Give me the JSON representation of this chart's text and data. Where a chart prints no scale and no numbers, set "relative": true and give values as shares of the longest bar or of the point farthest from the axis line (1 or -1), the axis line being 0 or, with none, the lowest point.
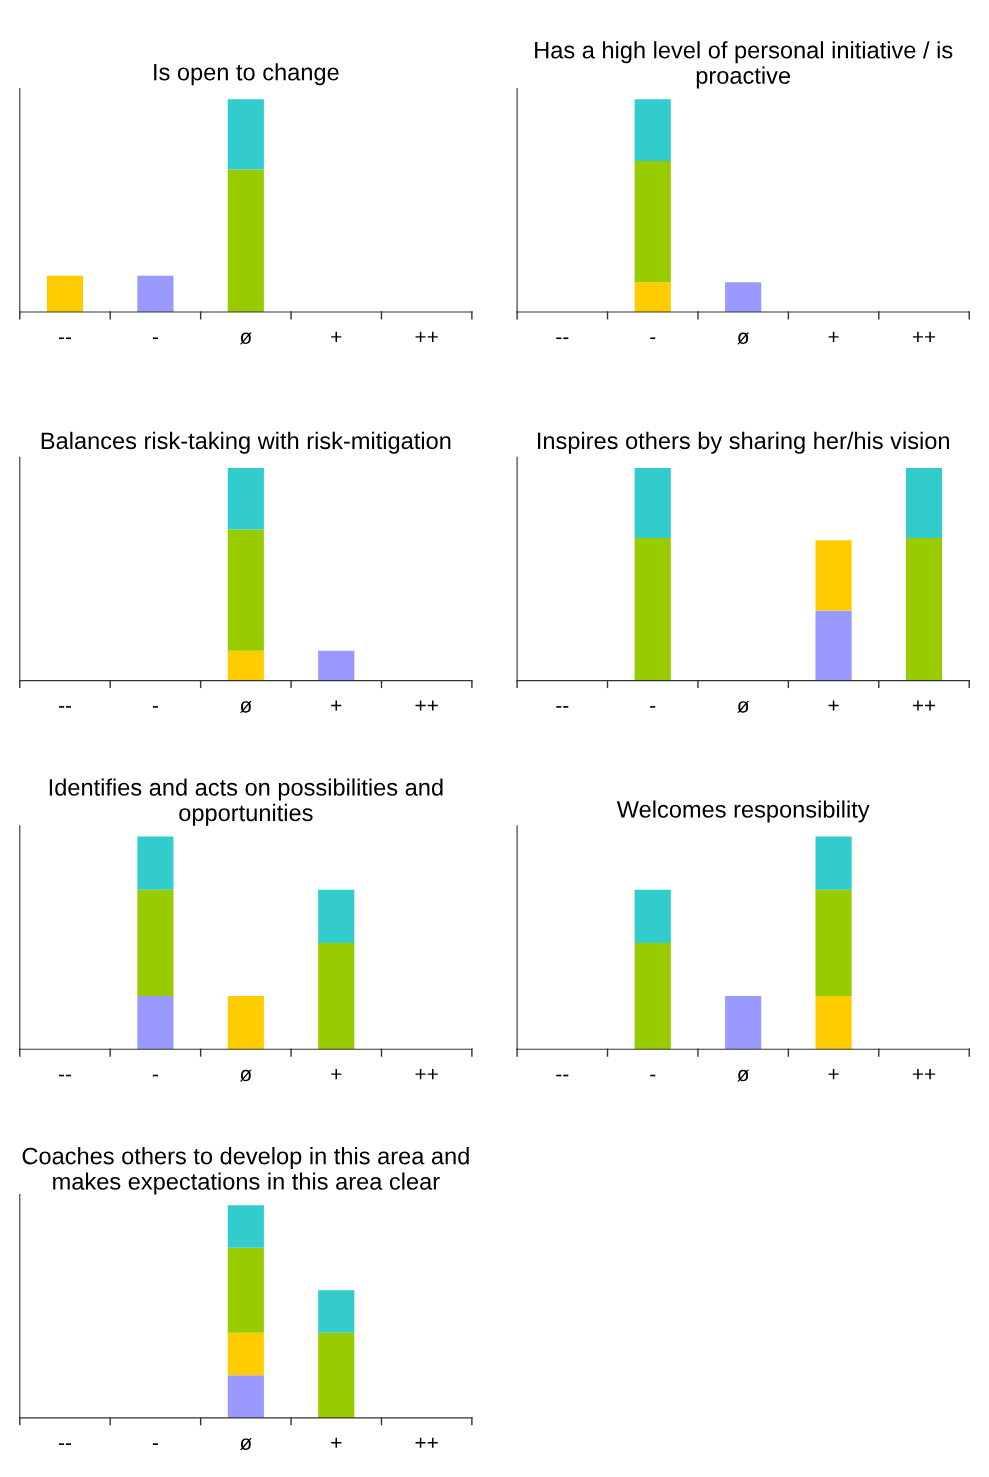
{
  "chart_data": [
    {
      "type": "bar",
      "stacked": true,
      "relative": true,
      "title": "Is open to change",
      "categories": [
        "--",
        "-",
        "ø",
        "+",
        "++"
      ],
      "series": [
        {
          "color": "#9999ff",
          "values": [
            null,
            0.17,
            null,
            null,
            null
          ]
        },
        {
          "color": "#ffcc00",
          "values": [
            0.17,
            null,
            null,
            null,
            null
          ]
        },
        {
          "color": "#99cc00",
          "values": [
            null,
            null,
            0.67,
            null,
            null
          ]
        },
        {
          "color": "#33cccc",
          "values": [
            null,
            null,
            0.33,
            null,
            null
          ]
        }
      ]
    },
    {
      "type": "bar",
      "stacked": true,
      "relative": true,
      "title": "Has a high level of personal initiative / is proactive",
      "categories": [
        "--",
        "-",
        "ø",
        "+",
        "++"
      ],
      "series": [
        {
          "color": "#9999ff",
          "values": [
            null,
            null,
            0.14,
            null,
            null
          ]
        },
        {
          "color": "#ffcc00",
          "values": [
            null,
            0.14,
            null,
            null,
            null
          ]
        },
        {
          "color": "#99cc00",
          "values": [
            null,
            0.57,
            null,
            null,
            null
          ]
        },
        {
          "color": "#33cccc",
          "values": [
            null,
            0.29,
            null,
            null,
            null
          ]
        }
      ]
    },
    {
      "type": "bar",
      "stacked": true,
      "relative": true,
      "title": "Balances risk-taking with risk-mitigation",
      "categories": [
        "--",
        "-",
        "ø",
        "+",
        "++"
      ],
      "series": [
        {
          "color": "#9999ff",
          "values": [
            null,
            null,
            null,
            0.14,
            null
          ]
        },
        {
          "color": "#ffcc00",
          "values": [
            null,
            null,
            0.14,
            null,
            null
          ]
        },
        {
          "color": "#99cc00",
          "values": [
            null,
            null,
            0.57,
            null,
            null
          ]
        },
        {
          "color": "#33cccc",
          "values": [
            null,
            null,
            0.29,
            null,
            null
          ]
        }
      ]
    },
    {
      "type": "bar",
      "stacked": true,
      "relative": true,
      "title": "Inspires others by sharing her/his vision",
      "categories": [
        "--",
        "-",
        "ø",
        "+",
        "++"
      ],
      "series": [
        {
          "color": "#9999ff",
          "values": [
            null,
            null,
            null,
            0.33,
            null
          ]
        },
        {
          "color": "#ffcc00",
          "values": [
            null,
            null,
            null,
            0.33,
            null
          ]
        },
        {
          "color": "#99cc00",
          "values": [
            null,
            0.67,
            null,
            null,
            0.67
          ]
        },
        {
          "color": "#33cccc",
          "values": [
            null,
            0.33,
            null,
            null,
            0.33
          ]
        }
      ]
    },
    {
      "type": "bar",
      "stacked": true,
      "relative": true,
      "title": "Identifies and acts on possibilities and opportunities",
      "categories": [
        "--",
        "-",
        "ø",
        "+",
        "++"
      ],
      "series": [
        {
          "color": "#9999ff",
          "values": [
            null,
            0.25,
            null,
            null,
            null
          ]
        },
        {
          "color": "#ffcc00",
          "values": [
            null,
            null,
            0.25,
            null,
            null
          ]
        },
        {
          "color": "#99cc00",
          "values": [
            null,
            0.5,
            null,
            0.5,
            null
          ]
        },
        {
          "color": "#33cccc",
          "values": [
            null,
            0.25,
            null,
            0.25,
            null
          ]
        }
      ]
    },
    {
      "type": "bar",
      "stacked": true,
      "relative": true,
      "title": "Welcomes responsibility",
      "categories": [
        "--",
        "-",
        "ø",
        "+",
        "++"
      ],
      "series": [
        {
          "color": "#9999ff",
          "values": [
            null,
            null,
            0.25,
            null,
            null
          ]
        },
        {
          "color": "#ffcc00",
          "values": [
            null,
            null,
            null,
            0.25,
            null
          ]
        },
        {
          "color": "#99cc00",
          "values": [
            null,
            0.5,
            null,
            0.5,
            null
          ]
        },
        {
          "color": "#33cccc",
          "values": [
            null,
            0.25,
            null,
            0.25,
            null
          ]
        }
      ]
    },
    {
      "type": "bar",
      "stacked": true,
      "relative": true,
      "title": "Coaches others to develop in this area and makes expectations in this area clear",
      "categories": [
        "--",
        "-",
        "ø",
        "+",
        "++"
      ],
      "series": [
        {
          "color": "#9999ff",
          "values": [
            null,
            null,
            0.2,
            null,
            null
          ]
        },
        {
          "color": "#ffcc00",
          "values": [
            null,
            null,
            0.2,
            null,
            null
          ]
        },
        {
          "color": "#99cc00",
          "values": [
            null,
            null,
            0.4,
            0.4,
            null
          ]
        },
        {
          "color": "#33cccc",
          "values": [
            null,
            null,
            0.2,
            0.2,
            null
          ]
        }
      ]
    }
  ]
}
